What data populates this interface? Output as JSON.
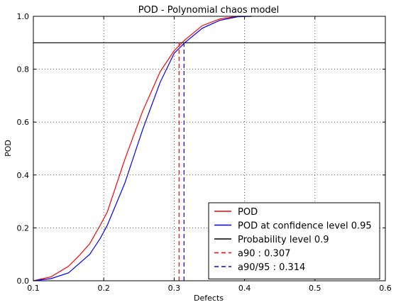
{
  "chart_data": {
    "type": "line",
    "title": "POD - Polynomial chaos model",
    "xlabel": "Defects",
    "ylabel": "POD",
    "xlim": [
      0.1,
      0.6
    ],
    "ylim": [
      0.0,
      1.0
    ],
    "xticks": [
      "0.1",
      "0.2",
      "0.3",
      "0.4",
      "0.5",
      "0.6"
    ],
    "yticks": [
      "0.0",
      "0.2",
      "0.4",
      "0.6",
      "0.8",
      "1.0"
    ],
    "grid": true,
    "legend_position": "lower-right",
    "series": [
      {
        "name": "POD",
        "color": "#ff0000",
        "style": "solid",
        "x": [
          0.1,
          0.125,
          0.15,
          0.165,
          0.18,
          0.195,
          0.205,
          0.23,
          0.255,
          0.28,
          0.3,
          0.315,
          0.34,
          0.365,
          0.39,
          0.41
        ],
        "y": [
          0.0,
          0.015,
          0.055,
          0.095,
          0.14,
          0.21,
          0.26,
          0.46,
          0.64,
          0.79,
          0.87,
          0.91,
          0.965,
          0.99,
          1.0,
          1.0
        ]
      },
      {
        "name": "POD at confidence level 0.95",
        "color": "#0000ff",
        "style": "solid",
        "x": [
          0.1,
          0.125,
          0.15,
          0.165,
          0.18,
          0.195,
          0.205,
          0.23,
          0.255,
          0.28,
          0.3,
          0.315,
          0.34,
          0.365,
          0.39,
          0.41
        ],
        "y": [
          0.0,
          0.008,
          0.03,
          0.065,
          0.1,
          0.16,
          0.21,
          0.37,
          0.57,
          0.75,
          0.86,
          0.9,
          0.955,
          0.985,
          0.998,
          1.0
        ]
      },
      {
        "name": "Probability level 0.9",
        "color": "#000000",
        "style": "solid",
        "x": [
          0.1,
          0.6
        ],
        "y": [
          0.9,
          0.9
        ]
      },
      {
        "name": "a90 : 0.307",
        "color": "#ff0000",
        "style": "dashed",
        "x": [
          0.307,
          0.307
        ],
        "y": [
          0.0,
          0.9
        ]
      },
      {
        "name": "a90/95 : 0.314",
        "color": "#0000ff",
        "style": "dashed",
        "x": [
          0.314,
          0.314
        ],
        "y": [
          0.0,
          0.9
        ]
      }
    ]
  }
}
